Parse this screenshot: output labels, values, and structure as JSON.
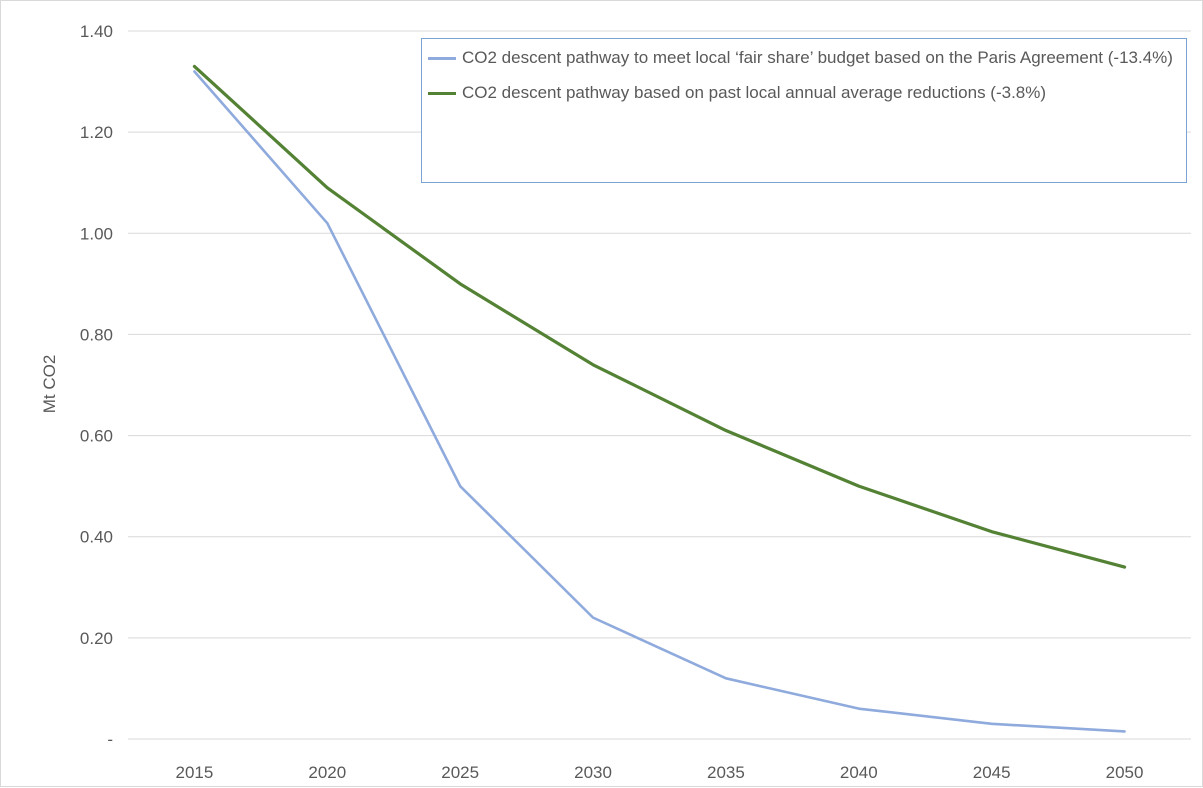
{
  "chart_data": {
    "type": "line",
    "title": "",
    "xlabel": "",
    "ylabel": "Mt CO2",
    "categories": [
      "2015",
      "2020",
      "2025",
      "2030",
      "2035",
      "2040",
      "2045",
      "2050"
    ],
    "y_tick_labels": [
      "-",
      "0.20",
      "0.40",
      "0.60",
      "0.80",
      "1.00",
      "1.20",
      "1.40"
    ],
    "y_tick_values": [
      0,
      0.2,
      0.4,
      0.6,
      0.8,
      1.0,
      1.2,
      1.4
    ],
    "ylim": [
      0,
      1.4
    ],
    "grid": "horizontal",
    "legend_position": "top-right",
    "series": [
      {
        "name": "CO2 descent pathway to meet local ‘fair share’ budget based on the Paris Agreement (-13.4%)",
        "color": "#8faadc",
        "values": [
          1.32,
          1.02,
          0.5,
          0.24,
          0.12,
          0.06,
          0.03,
          0.015
        ]
      },
      {
        "name": "CO2 descent pathway based on  past local annual average reductions (-3.8%)",
        "color": "#548235",
        "values": [
          1.33,
          1.09,
          0.9,
          0.74,
          0.61,
          0.5,
          0.41,
          0.34
        ]
      }
    ]
  }
}
